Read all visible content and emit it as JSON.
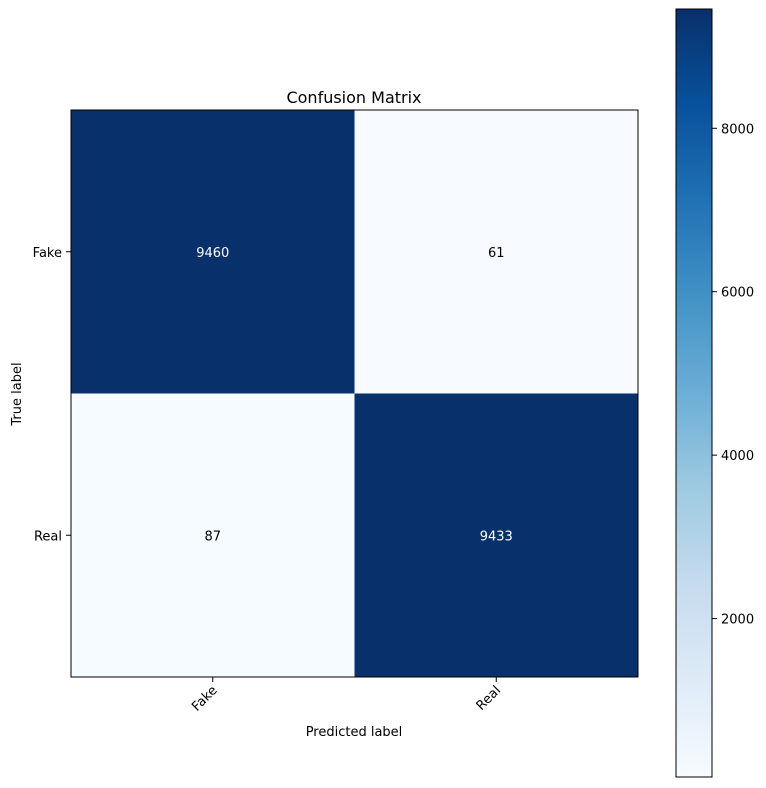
{
  "chart_data": {
    "type": "heatmap",
    "title": "Confusion Matrix",
    "xlabel": "Predicted label",
    "ylabel": "True label",
    "x_categories": [
      "Fake",
      "Real"
    ],
    "y_categories": [
      "Fake",
      "Real"
    ],
    "values": [
      [
        9460,
        61
      ],
      [
        87,
        9433
      ]
    ],
    "colormap": "Blues",
    "color_min": 61,
    "color_max": 9460,
    "colorbar_ticks": [
      "2000",
      "4000",
      "6000",
      "8000"
    ],
    "colorbar_tick_values": [
      2000,
      4000,
      6000,
      8000
    ],
    "x_tick_rotation_deg": 45,
    "grid": false
  }
}
